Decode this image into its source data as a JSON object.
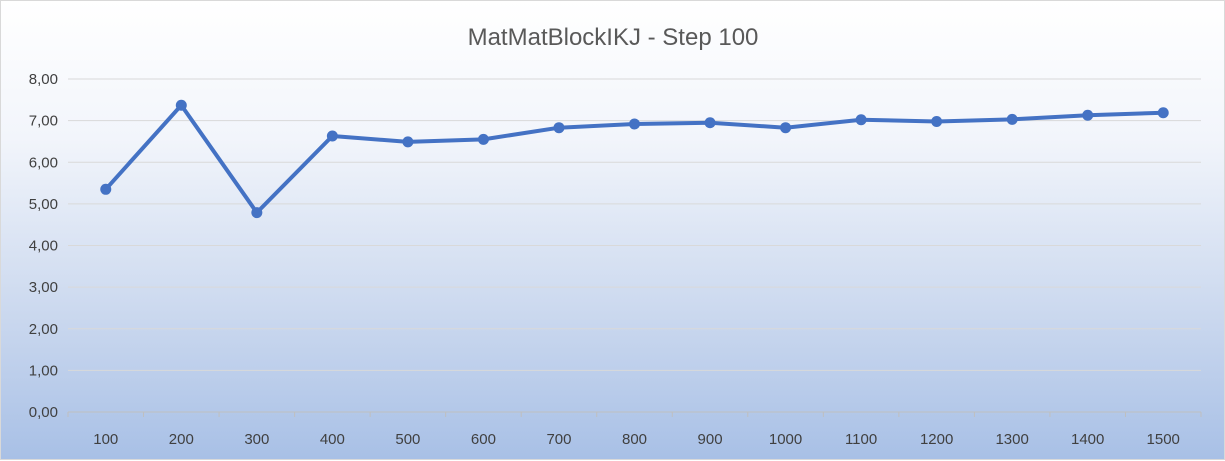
{
  "chart_data": {
    "type": "line",
    "title": "MatMatBlockIKJ - Step 100",
    "xlabel": "",
    "ylabel": "",
    "categories": [
      "100",
      "200",
      "300",
      "400",
      "500",
      "600",
      "700",
      "800",
      "900",
      "1000",
      "1100",
      "1200",
      "1300",
      "1400",
      "1500"
    ],
    "series": [
      {
        "values": [
          5.35,
          7.37,
          4.79,
          6.63,
          6.49,
          6.55,
          6.83,
          6.92,
          6.95,
          6.83,
          7.02,
          6.98,
          7.03,
          7.13,
          7.19
        ]
      }
    ],
    "ylim": [
      0,
      8
    ],
    "y_ticks": [
      "0,00",
      "1,00",
      "2,00",
      "3,00",
      "4,00",
      "5,00",
      "6,00",
      "7,00",
      "8,00"
    ],
    "grid": true,
    "legend": "none",
    "colors": {
      "line": "#4472c4",
      "grid": "#d9d9d9",
      "axis": "#bfbfbf"
    }
  }
}
